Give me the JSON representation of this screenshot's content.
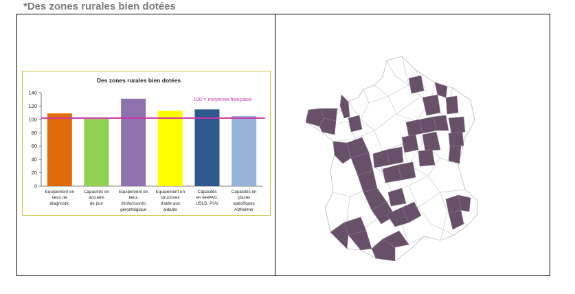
{
  "page": {
    "title": "*Des zones rurales bien dotées"
  },
  "colors": {
    "reference_line": "#cc33aa",
    "map_highlight": "#675068",
    "map_border": "#b8b8b8",
    "chart_border": "#c9c13f"
  },
  "chart_data": {
    "type": "bar",
    "title": "Des zones rurales bien dotées",
    "categories": [
      [
        "Equipement en",
        "lieux de",
        "diagnostic"
      ],
      [
        "Capacités en",
        "accueils",
        "de jour"
      ],
      [
        "Equipement en",
        "lieux",
        "d'info/coordo",
        "gérontolgique"
      ],
      [
        "Equipement en",
        "structures",
        "d'aide aux",
        "aidants"
      ],
      [
        "Capacités",
        "en EHPAD,",
        "USLD, PUV"
      ],
      [
        "Capacités en",
        "places",
        "spécifiques",
        "Alzheimer"
      ]
    ],
    "values": [
      109,
      101,
      131,
      113,
      115,
      105
    ],
    "colors": [
      "#e36c0a",
      "#92d050",
      "#8e72ae",
      "#ffff00",
      "#2e598f",
      "#95b3d7"
    ],
    "ylim": [
      0,
      140
    ],
    "yticks": [
      0,
      20,
      40,
      60,
      80,
      100,
      120,
      140
    ],
    "reference": {
      "value": 102,
      "label": "100 = moyenne française"
    },
    "grid": false,
    "xlabel": "",
    "ylabel": ""
  }
}
